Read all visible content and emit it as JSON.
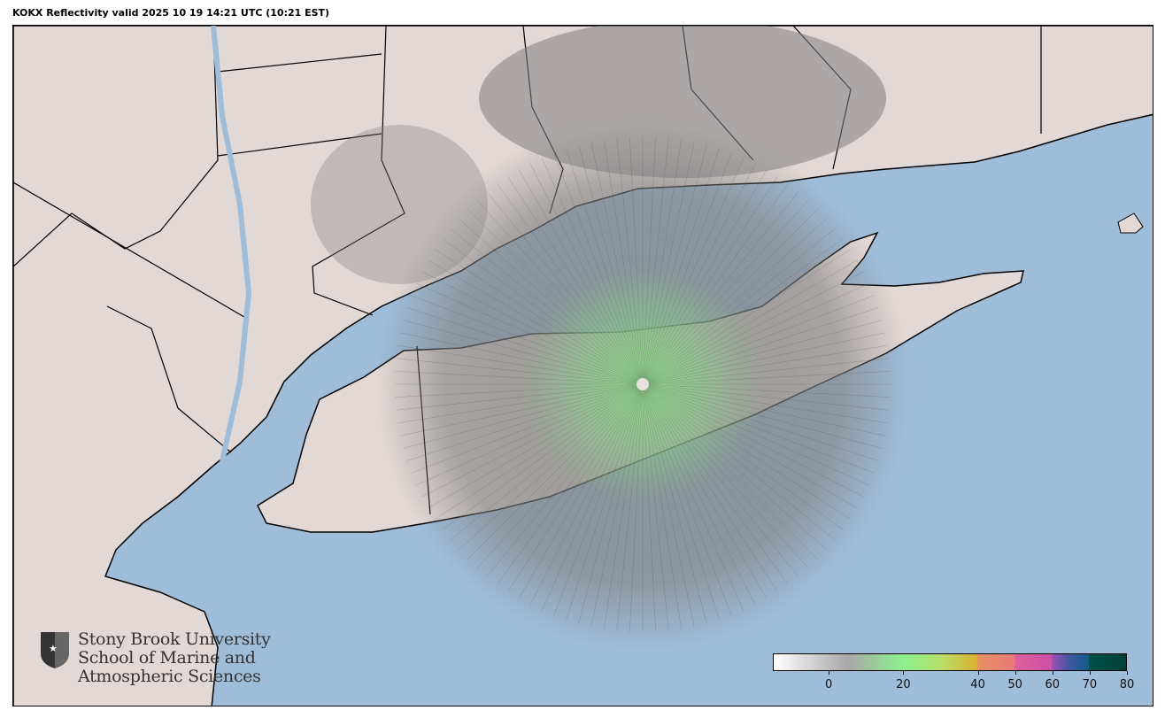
{
  "title": "KOKX Reflectivity valid 2025 10 19 14:21 UTC (10:21 EST)",
  "map": {
    "radar_site": "KOKX",
    "colors": {
      "water": "#9fbcd8",
      "land": "#e2d8d5",
      "radar_low": "#8a8a8a",
      "radar_mid": "#8ee88e"
    }
  },
  "logo": {
    "line1": "Stony Brook University",
    "line2": "School of Marine and",
    "line3": "Atmospheric Sciences"
  },
  "colorbar": {
    "range": [
      -15,
      80
    ],
    "ticks": [
      "0",
      "20",
      "40",
      "50",
      "60",
      "70",
      "80"
    ],
    "tick_values": [
      0,
      20,
      40,
      50,
      60,
      70,
      80
    ],
    "stops": [
      {
        "v": -15,
        "c": "#ffffff"
      },
      {
        "v": 5,
        "c": "#a8a8a8"
      },
      {
        "v": 20,
        "c": "#8ef08e"
      },
      {
        "v": 30,
        "c": "#b5e06a"
      },
      {
        "v": 39.9,
        "c": "#dcb030"
      },
      {
        "v": 40,
        "c": "#e89060"
      },
      {
        "v": 50,
        "c": "#e87a78"
      },
      {
        "v": 50.1,
        "c": "#e0609a"
      },
      {
        "v": 60,
        "c": "#cc50a8"
      },
      {
        "v": 60.1,
        "c": "#9a50b0"
      },
      {
        "v": 65,
        "c": "#3a58a0"
      },
      {
        "v": 70,
        "c": "#145a8a"
      },
      {
        "v": 70.1,
        "c": "#00504a"
      },
      {
        "v": 80,
        "c": "#004038"
      }
    ]
  }
}
